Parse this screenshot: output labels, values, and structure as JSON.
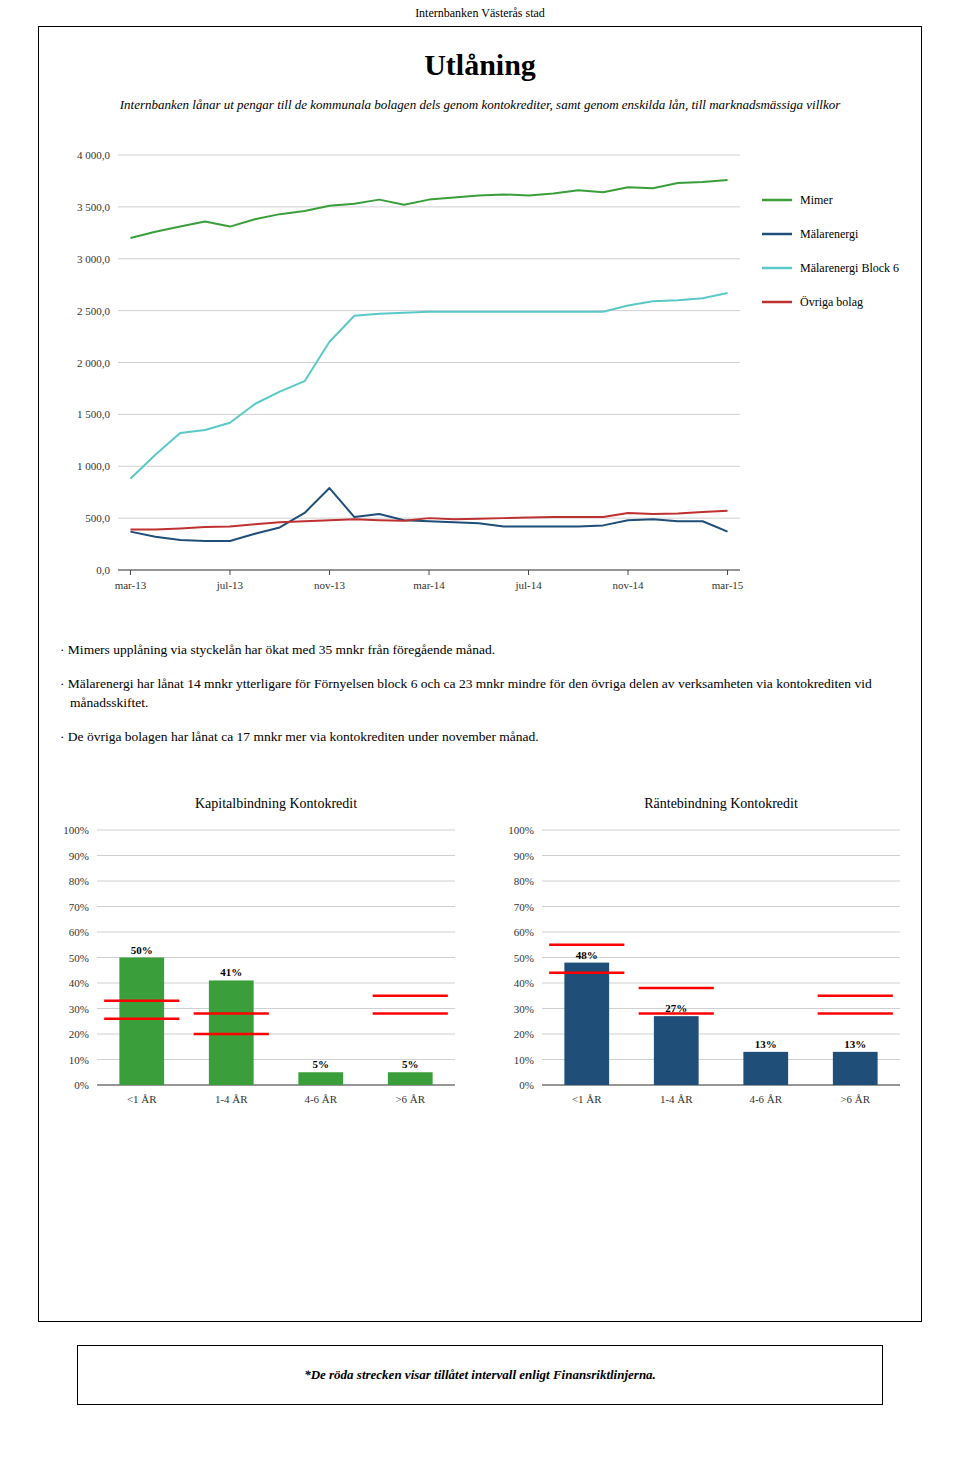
{
  "header": "Internbanken Västerås stad",
  "title": "Utlåning",
  "subtitle": "Internbanken lånar ut pengar till de kommunala bolagen dels genom kontokrediter, samt genom enskilda lån, till marknadsmässiga villkor",
  "annotations": [
    "· Mimers upplåning via styckelån har ökat med 35 mnkr från föregående månad.",
    "· Mälarenergi har lånat 14 mnkr ytterligare för Förnyelsen block 6 och ca 23 mnkr mindre för den övriga delen av verksamheten via kontokrediten vid månadsskiftet.",
    "· De övriga bolagen har lånat ca 17 mnkr mer via kontokrediten under november månad."
  ],
  "footnote": "*De röda strecken visar tillåtet intervall enligt Finansriktlinjerna.",
  "chart_data": [
    {
      "type": "line",
      "categories": [
        "mar-13",
        null,
        null,
        null,
        "jul-13",
        null,
        null,
        null,
        "nov-13",
        null,
        null,
        null,
        "mar-14",
        null,
        null,
        null,
        "jul-14",
        null,
        null,
        null,
        "nov-14",
        null,
        null,
        null,
        "mar-15"
      ],
      "series": [
        {
          "name": "Mimer",
          "color": "#3a9e3a",
          "values": [
            3200,
            3260,
            3310,
            3360,
            3310,
            3380,
            3430,
            3460,
            3510,
            3530,
            3570,
            3520,
            3570,
            3590,
            3610,
            3620,
            3610,
            3630,
            3660,
            3640,
            3690,
            3680,
            3730,
            3740,
            3760
          ]
        },
        {
          "name": "Mälarenergi",
          "color": "#1f4e79",
          "values": [
            370,
            320,
            290,
            280,
            280,
            350,
            410,
            550,
            790,
            510,
            540,
            480,
            470,
            460,
            450,
            420,
            420,
            420,
            420,
            430,
            480,
            490,
            470,
            470,
            370
          ]
        },
        {
          "name": "Mälarenergi Block 6",
          "color": "#5bc8c8",
          "values": [
            880,
            1110,
            1320,
            1350,
            1420,
            1600,
            1720,
            1820,
            2200,
            2450,
            2470,
            2480,
            2490,
            2490,
            2490,
            2490,
            2490,
            2490,
            2490,
            2490,
            2550,
            2590,
            2600,
            2620,
            2670
          ]
        },
        {
          "name": "Övriga bolag",
          "color": "#bf3030",
          "values": [
            390,
            390,
            400,
            415,
            420,
            440,
            460,
            470,
            480,
            490,
            480,
            475,
            500,
            490,
            495,
            500,
            505,
            510,
            510,
            510,
            550,
            540,
            545,
            560,
            570
          ]
        }
      ],
      "ylim": [
        0,
        4000
      ],
      "yticks": [
        {
          "value": 0,
          "label": "0,0"
        },
        {
          "value": 500,
          "label": "500,0"
        },
        {
          "value": 1000,
          "label": "1 000,0"
        },
        {
          "value": 1500,
          "label": "1 500,0"
        },
        {
          "value": 2000,
          "label": "2 000,0"
        },
        {
          "value": 2500,
          "label": "2 500,0"
        },
        {
          "value": 3000,
          "label": "3 000,0"
        },
        {
          "value": 3500,
          "label": "3 500,0"
        },
        {
          "value": 4000,
          "label": "4 000,0"
        }
      ],
      "grid": true,
      "legend": "right"
    },
    {
      "type": "bar",
      "title": "Kapitalbindning Kontokredit",
      "categories": [
        "<1 ÅR",
        "1-4 ÅR",
        "4-6 ÅR",
        ">6 ÅR"
      ],
      "values": [
        50,
        41,
        5,
        5
      ],
      "value_labels": [
        "50%",
        "41%",
        "5%",
        "5%"
      ],
      "color": "#3a9e3a",
      "allowed_min": [
        26,
        20,
        null,
        28
      ],
      "allowed_max": [
        33,
        28,
        null,
        35
      ],
      "ylim": [
        0,
        100
      ],
      "yticks": [
        {
          "value": 0,
          "label": "0%"
        },
        {
          "value": 10,
          "label": "10%"
        },
        {
          "value": 20,
          "label": "20%"
        },
        {
          "value": 30,
          "label": "30%"
        },
        {
          "value": 40,
          "label": "40%"
        },
        {
          "value": 50,
          "label": "50%"
        },
        {
          "value": 60,
          "label": "60%"
        },
        {
          "value": 70,
          "label": "70%"
        },
        {
          "value": 80,
          "label": "80%"
        },
        {
          "value": 90,
          "label": "90%"
        },
        {
          "value": 100,
          "label": "100%"
        }
      ],
      "grid": true,
      "data_labels": true
    },
    {
      "type": "bar",
      "title": "Räntebindning Kontokredit",
      "categories": [
        "<1 ÅR",
        "1-4 ÅR",
        "4-6 ÅR",
        ">6 ÅR"
      ],
      "values": [
        48,
        27,
        13,
        13
      ],
      "value_labels": [
        "48%",
        "27%",
        "13%",
        "13%"
      ],
      "color": "#1f4e79",
      "allowed_min": [
        44,
        28,
        null,
        28
      ],
      "allowed_max": [
        55,
        38,
        null,
        35
      ],
      "ylim": [
        0,
        100
      ],
      "yticks": [
        {
          "value": 0,
          "label": "0%"
        },
        {
          "value": 10,
          "label": "10%"
        },
        {
          "value": 20,
          "label": "20%"
        },
        {
          "value": 30,
          "label": "30%"
        },
        {
          "value": 40,
          "label": "40%"
        },
        {
          "value": 50,
          "label": "50%"
        },
        {
          "value": 60,
          "label": "60%"
        },
        {
          "value": 70,
          "label": "70%"
        },
        {
          "value": 80,
          "label": "80%"
        },
        {
          "value": 90,
          "label": "90%"
        },
        {
          "value": 100,
          "label": "100%"
        }
      ],
      "grid": true,
      "data_labels": true
    }
  ]
}
